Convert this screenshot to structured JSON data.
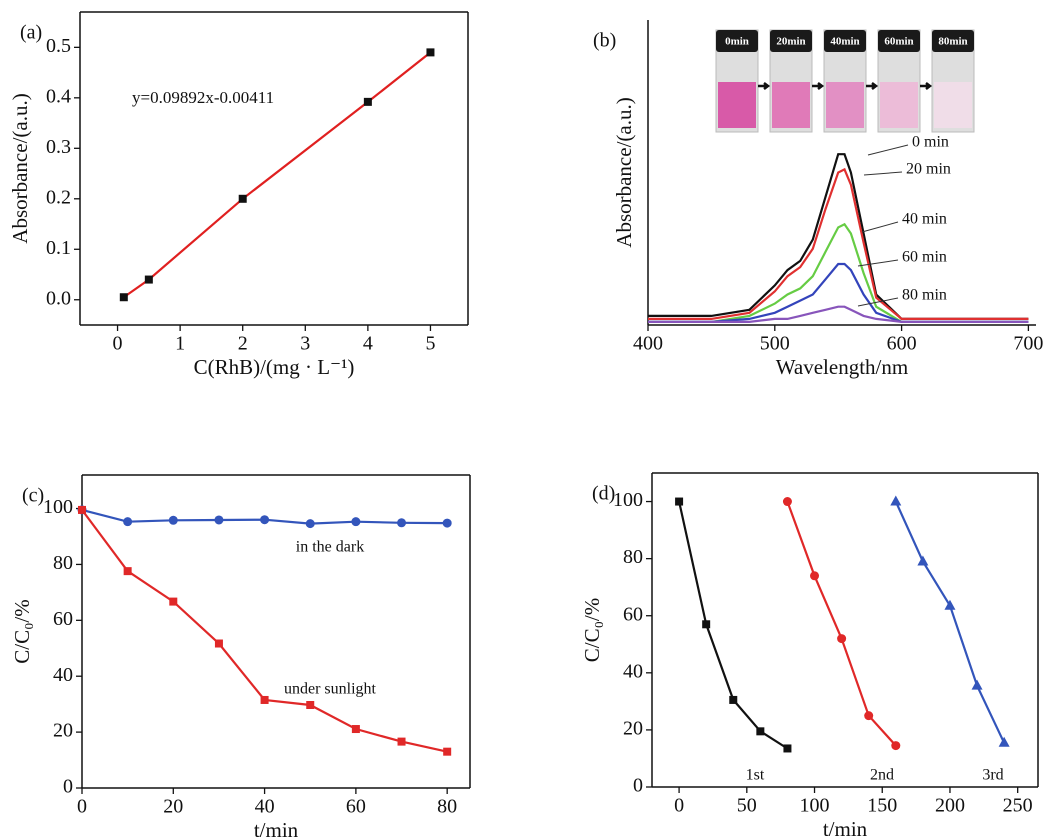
{
  "chart_data": [
    {
      "type": "line",
      "panel": "(a)",
      "xlabel": "C(RhB)/(mg · L⁻¹)",
      "ylabel": "Absorbance/(a.u.)",
      "annotation": "y=0.09892x-0.00411",
      "x": [
        0.1,
        0.5,
        2,
        4,
        5
      ],
      "series": [
        {
          "color": "#e02020",
          "marker": "square",
          "marker_color": "#111111",
          "values": [
            0.005,
            0.04,
            0.2,
            0.392,
            0.49
          ]
        }
      ],
      "xlim": [
        -0.6,
        5.6
      ],
      "xticks": [
        0,
        1,
        2,
        3,
        4,
        5
      ],
      "ylim": [
        -0.05,
        0.57
      ],
      "yticks": [
        {
          "value": 0,
          "label": "0.0"
        },
        0.1,
        0.2,
        0.3,
        0.4,
        0.5
      ]
    },
    {
      "type": "line",
      "panel": "(b)",
      "xlabel": "Wavelength/nm",
      "ylabel": "Absorbance/(a.u.)",
      "inset_labels": [
        "0min",
        "20min",
        "40min",
        "60min",
        "80min"
      ],
      "x": [
        400,
        450,
        480,
        500,
        510,
        520,
        530,
        540,
        550,
        555,
        560,
        570,
        580,
        600,
        650,
        700
      ],
      "series": [
        {
          "name": "0 min",
          "color": "#111111",
          "values": [
            0.03,
            0.03,
            0.05,
            0.13,
            0.18,
            0.21,
            0.28,
            0.42,
            0.56,
            0.56,
            0.5,
            0.3,
            0.1,
            0.02,
            0.02,
            0.02
          ]
        },
        {
          "name": "20 min",
          "color": "#e03030",
          "values": [
            0.02,
            0.02,
            0.04,
            0.11,
            0.16,
            0.19,
            0.25,
            0.38,
            0.5,
            0.51,
            0.46,
            0.27,
            0.09,
            0.02,
            0.02,
            0.02
          ]
        },
        {
          "name": "40 min",
          "color": "#66cc44",
          "values": [
            0.01,
            0.01,
            0.03,
            0.07,
            0.1,
            0.12,
            0.16,
            0.24,
            0.32,
            0.33,
            0.3,
            0.17,
            0.06,
            0.01,
            0.01,
            0.01
          ]
        },
        {
          "name": "60 min",
          "color": "#3344bb",
          "values": [
            0.01,
            0.01,
            0.02,
            0.04,
            0.06,
            0.08,
            0.1,
            0.15,
            0.2,
            0.2,
            0.18,
            0.1,
            0.04,
            0.01,
            0.01,
            0.01
          ]
        },
        {
          "name": "80 min",
          "color": "#8855bb",
          "values": [
            0.01,
            0.01,
            0.01,
            0.02,
            0.02,
            0.03,
            0.04,
            0.05,
            0.06,
            0.06,
            0.05,
            0.03,
            0.02,
            0.01,
            0.01,
            0.01
          ]
        }
      ],
      "xlim": [
        400,
        706
      ],
      "xticks": [
        400,
        500,
        600,
        700
      ],
      "ylim": [
        0,
        1
      ],
      "yticks": []
    },
    {
      "type": "line",
      "panel": "(c)",
      "xlabel": "t/min",
      "ylabel": "C/C₀/%",
      "x": [
        0,
        10,
        20,
        30,
        40,
        50,
        60,
        70,
        80
      ],
      "series": [
        {
          "name": "in the dark",
          "color": "#3355bb",
          "marker": "circle",
          "marker_color": "#3355bb",
          "values": [
            99.5,
            95.3,
            95.8,
            95.9,
            96,
            94.6,
            95.3,
            94.9,
            94.8
          ]
        },
        {
          "name": "under sunlight",
          "color": "#e02828",
          "marker": "square",
          "marker_color": "#e02828",
          "values": [
            99.5,
            77.6,
            66.7,
            51.7,
            31.5,
            29.7,
            21.1,
            16.6,
            13
          ]
        }
      ],
      "xlim": [
        0,
        85
      ],
      "xticks": [
        0,
        20,
        40,
        60,
        80
      ],
      "ylim": [
        0,
        112
      ],
      "yticks": [
        0,
        20,
        40,
        60,
        80,
        100
      ]
    },
    {
      "type": "line",
      "panel": "(d)",
      "xlabel": "t/min",
      "ylabel": "C/C₀/%",
      "series": [
        {
          "name": "1st",
          "color": "#111111",
          "marker": "square",
          "marker_color": "#111111",
          "x": [
            0,
            20,
            40,
            60,
            80
          ],
          "values": [
            100,
            57,
            30.5,
            19.5,
            13.5
          ]
        },
        {
          "name": "2nd",
          "color": "#e02828",
          "marker": "circle",
          "marker_color": "#e02828",
          "x": [
            80,
            100,
            120,
            140,
            160
          ],
          "values": [
            100,
            74,
            52,
            25,
            14.5
          ]
        },
        {
          "name": "3rd",
          "color": "#3355bb",
          "marker": "triangle",
          "marker_color": "#3355bb",
          "x": [
            160,
            180,
            200,
            220,
            240
          ],
          "values": [
            100,
            79,
            63.5,
            35.5,
            15.5
          ]
        }
      ],
      "xlim": [
        -20,
        265
      ],
      "xticks": [
        0,
        50,
        100,
        150,
        200,
        250
      ],
      "ylim": [
        0,
        110
      ],
      "yticks": [
        0,
        20,
        40,
        60,
        80,
        100
      ]
    }
  ]
}
